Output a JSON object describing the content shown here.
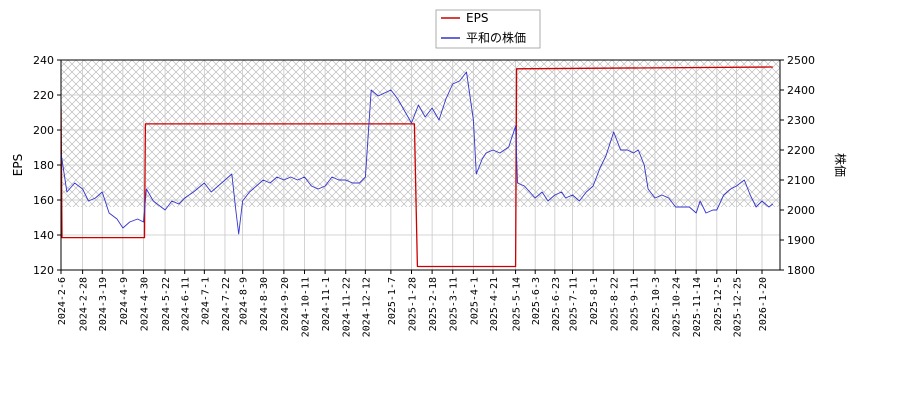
{
  "chart_data": {
    "type": "line",
    "title": "",
    "legend": {
      "placement": "top-center",
      "entries": [
        "EPS",
        "平和の株価"
      ]
    },
    "grid": true,
    "left_axis": {
      "label": "EPS",
      "ylim": [
        120,
        240
      ],
      "ticks": [
        120,
        140,
        160,
        180,
        200,
        220,
        240
      ]
    },
    "right_axis": {
      "label": "株価",
      "ylim": [
        1800,
        2500
      ],
      "ticks": [
        1800,
        1900,
        2000,
        2100,
        2200,
        2300,
        2400,
        2500
      ]
    },
    "x_tick_labels": [
      "2024-2-6",
      "2024-2-28",
      "2024-3-19",
      "2024-4-9",
      "2024-4-30",
      "2024-5-22",
      "2024-6-11",
      "2024-7-1",
      "2024-7-22",
      "2024-8-9",
      "2024-8-30",
      "2024-9-20",
      "2024-10-11",
      "2024-11-1",
      "2024-11-22",
      "2024-12-12",
      "2025-1-7",
      "2025-1-28",
      "2025-2-18",
      "2025-3-11",
      "2025-4-1",
      "2025-4-21",
      "2025-5-14",
      "2025-6-3",
      "2025-6-23",
      "2025-7-11",
      "2025-8-1",
      "2025-8-22",
      "2025-9-11",
      "2025-10-3",
      "2025-10-24",
      "2025-11-14",
      "2025-12-5",
      "2025-12-25",
      "2026-1-20"
    ],
    "shaded_band": {
      "axis": "right",
      "range": [
        2010,
        2500
      ],
      "pattern": "crosshatch"
    },
    "series": [
      {
        "name": "EPS",
        "axis": "left",
        "color": "#cc0000",
        "step": true,
        "points": [
          [
            "2024-2-6",
            213
          ],
          [
            "2024-2-7",
            138.5
          ],
          [
            "2024-5-1",
            138.5
          ],
          [
            "2024-5-2",
            203.5
          ],
          [
            "2025-1-31",
            203.5
          ],
          [
            "2025-2-3",
            122
          ],
          [
            "2025-5-14",
            122
          ],
          [
            "2025-5-15",
            235
          ],
          [
            "2026-1-31",
            236
          ]
        ]
      },
      {
        "name": "平和の株価",
        "axis": "right",
        "color": "#3333cc",
        "points": [
          [
            "2024-2-6",
            2190
          ],
          [
            "2024-2-12",
            2060
          ],
          [
            "2024-2-20",
            2090
          ],
          [
            "2024-2-28",
            2070
          ],
          [
            "2024-3-5",
            2030
          ],
          [
            "2024-3-12",
            2040
          ],
          [
            "2024-3-19",
            2060
          ],
          [
            "2024-3-26",
            1990
          ],
          [
            "2024-4-3",
            1970
          ],
          [
            "2024-4-9",
            1940
          ],
          [
            "2024-4-16",
            1960
          ],
          [
            "2024-4-24",
            1970
          ],
          [
            "2024-4-30",
            1960
          ],
          [
            "2024-5-3",
            2070
          ],
          [
            "2024-5-10",
            2030
          ],
          [
            "2024-5-22",
            2000
          ],
          [
            "2024-5-29",
            2030
          ],
          [
            "2024-6-5",
            2020
          ],
          [
            "2024-6-11",
            2040
          ],
          [
            "2024-6-20",
            2060
          ],
          [
            "2024-7-1",
            2090
          ],
          [
            "2024-7-8",
            2060
          ],
          [
            "2024-7-15",
            2080
          ],
          [
            "2024-7-22",
            2100
          ],
          [
            "2024-7-29",
            2120
          ],
          [
            "2024-8-2",
            2000
          ],
          [
            "2024-8-5",
            1920
          ],
          [
            "2024-8-9",
            2030
          ],
          [
            "2024-8-16",
            2060
          ],
          [
            "2024-8-23",
            2080
          ],
          [
            "2024-8-30",
            2100
          ],
          [
            "2024-9-6",
            2090
          ],
          [
            "2024-9-13",
            2110
          ],
          [
            "2024-9-20",
            2100
          ],
          [
            "2024-9-27",
            2110
          ],
          [
            "2024-10-4",
            2100
          ],
          [
            "2024-10-11",
            2110
          ],
          [
            "2024-10-18",
            2080
          ],
          [
            "2024-10-25",
            2070
          ],
          [
            "2024-11-1",
            2080
          ],
          [
            "2024-11-8",
            2110
          ],
          [
            "2024-11-15",
            2100
          ],
          [
            "2024-11-22",
            2100
          ],
          [
            "2024-11-29",
            2090
          ],
          [
            "2024-12-6",
            2090
          ],
          [
            "2024-12-12",
            2110
          ],
          [
            "2024-12-18",
            2400
          ],
          [
            "2024-12-25",
            2380
          ],
          [
            "2025-1-7",
            2400
          ],
          [
            "2025-1-14",
            2370
          ],
          [
            "2025-1-21",
            2330
          ],
          [
            "2025-1-28",
            2290
          ],
          [
            "2025-2-4",
            2350
          ],
          [
            "2025-2-11",
            2310
          ],
          [
            "2025-2-18",
            2340
          ],
          [
            "2025-2-25",
            2300
          ],
          [
            "2025-3-4",
            2370
          ],
          [
            "2025-3-11",
            2420
          ],
          [
            "2025-3-18",
            2430
          ],
          [
            "2025-3-25",
            2460
          ],
          [
            "2025-4-1",
            2300
          ],
          [
            "2025-4-4",
            2120
          ],
          [
            "2025-4-10",
            2170
          ],
          [
            "2025-4-14",
            2190
          ],
          [
            "2025-4-21",
            2200
          ],
          [
            "2025-4-28",
            2190
          ],
          [
            "2025-5-7",
            2210
          ],
          [
            "2025-5-14",
            2280
          ],
          [
            "2025-5-16",
            2090
          ],
          [
            "2025-5-23",
            2080
          ],
          [
            "2025-6-3",
            2040
          ],
          [
            "2025-6-10",
            2060
          ],
          [
            "2025-6-16",
            2030
          ],
          [
            "2025-6-23",
            2050
          ],
          [
            "2025-6-30",
            2060
          ],
          [
            "2025-7-4",
            2040
          ],
          [
            "2025-7-11",
            2050
          ],
          [
            "2025-7-18",
            2030
          ],
          [
            "2025-7-25",
            2060
          ],
          [
            "2025-8-1",
            2080
          ],
          [
            "2025-8-8",
            2140
          ],
          [
            "2025-8-14",
            2180
          ],
          [
            "2025-8-22",
            2260
          ],
          [
            "2025-8-29",
            2200
          ],
          [
            "2025-9-5",
            2200
          ],
          [
            "2025-9-11",
            2190
          ],
          [
            "2025-9-16",
            2200
          ],
          [
            "2025-9-22",
            2150
          ],
          [
            "2025-9-26",
            2070
          ],
          [
            "2025-10-3",
            2040
          ],
          [
            "2025-10-10",
            2050
          ],
          [
            "2025-10-17",
            2040
          ],
          [
            "2025-10-24",
            2010
          ],
          [
            "2025-10-31",
            2010
          ],
          [
            "2025-11-7",
            2010
          ],
          [
            "2025-11-14",
            1990
          ],
          [
            "2025-11-18",
            2030
          ],
          [
            "2025-11-24",
            1990
          ],
          [
            "2025-12-1",
            2000
          ],
          [
            "2025-12-5",
            2000
          ],
          [
            "2025-12-12",
            2050
          ],
          [
            "2025-12-19",
            2070
          ],
          [
            "2025-12-25",
            2080
          ],
          [
            "2026-1-2",
            2100
          ],
          [
            "2026-1-8",
            2050
          ],
          [
            "2026-1-14",
            2010
          ],
          [
            "2026-1-20",
            2030
          ],
          [
            "2026-1-27",
            2010
          ],
          [
            "2026-1-31",
            2020
          ]
        ]
      }
    ]
  }
}
